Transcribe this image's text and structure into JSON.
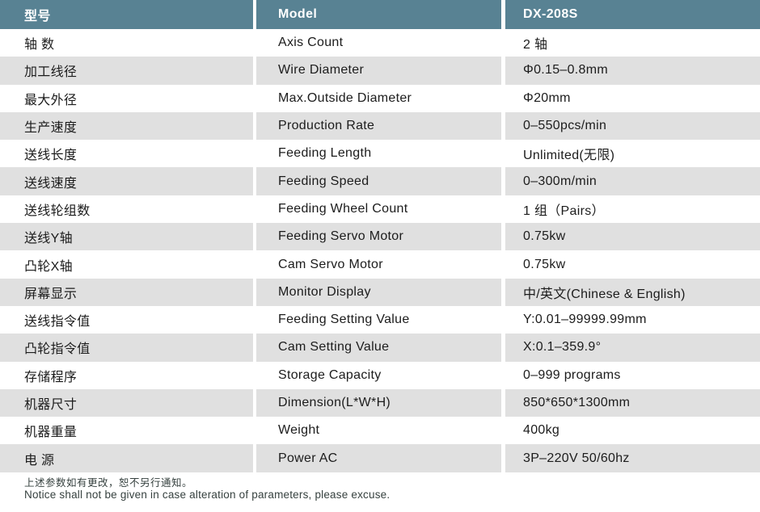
{
  "table": {
    "header": {
      "cn": "型号",
      "en": "Model",
      "value": "DX-208S"
    },
    "rows": [
      {
        "cn": "轴 数",
        "en": "Axis Count",
        "value": "2 轴"
      },
      {
        "cn": "加工线径",
        "en": "Wire Diameter",
        "value": "Φ0.15–0.8mm"
      },
      {
        "cn": "最大外径",
        "en": "Max.Outside Diameter",
        "value": "Φ20mm"
      },
      {
        "cn": "生产速度",
        "en": "Production Rate",
        "value": "0–550pcs/min"
      },
      {
        "cn": "送线长度",
        "en": "Feeding Length",
        "value": "Unlimited(无限)"
      },
      {
        "cn": "送线速度",
        "en": "Feeding Speed",
        "value": "0–300m/min"
      },
      {
        "cn": "送线轮组数",
        "en": "Feeding Wheel Count",
        "value": "1 组（Pairs）"
      },
      {
        "cn": "送线Y轴",
        "en": "Feeding Servo Motor",
        "value": "0.75kw"
      },
      {
        "cn": "凸轮X轴",
        "en": "Cam Servo Motor",
        "value": "0.75kw"
      },
      {
        "cn": "屏幕显示",
        "en": "Monitor Display",
        "value": "中/英文(Chinese & English)"
      },
      {
        "cn": "送线指令值",
        "en": "Feeding Setting Value",
        "value": "Y:0.01–99999.99mm"
      },
      {
        "cn": "凸轮指令值",
        "en": "Cam Setting Value",
        "value": "X:0.1–359.9°"
      },
      {
        "cn": "存储程序",
        "en": "Storage Capacity",
        "value": "0–999 programs"
      },
      {
        "cn": "机器尺寸",
        "en": "Dimension(L*W*H)",
        "value": "850*650*1300mm"
      },
      {
        "cn": "机器重量",
        "en": "Weight",
        "value": "400kg"
      },
      {
        "cn": "电 源",
        "en": "Power AC",
        "value": "3P–220V 50/60hz"
      }
    ]
  },
  "footer": {
    "note_cn": "上述参数如有更改，恕不另行通知。",
    "note_en": "Notice shall not be given in case alteration of parameters, please excuse."
  },
  "colors": {
    "header_bg": "#588293",
    "header_text": "#ffffff",
    "row_alt_bg": "#e0e0e0",
    "row_bg": "#ffffff",
    "body_text": "#1c1c1c",
    "footer_text": "#36413f"
  }
}
